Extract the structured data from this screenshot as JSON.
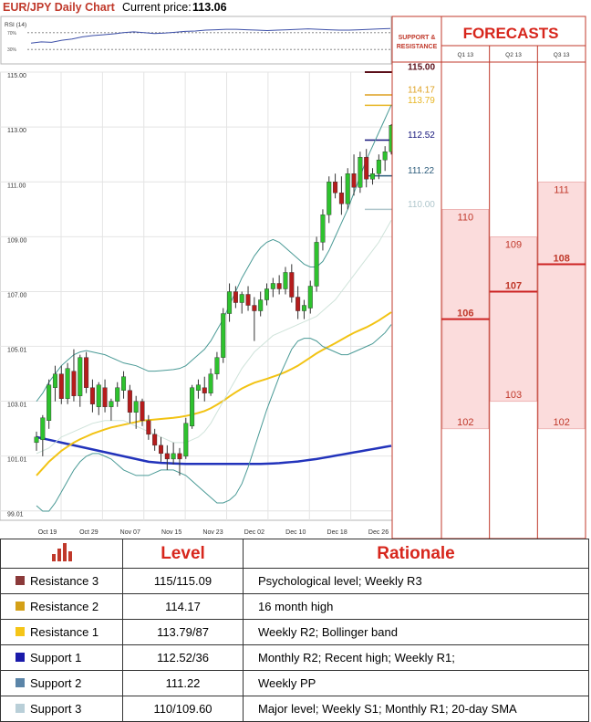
{
  "header": {
    "title": "EUR/JPY Daily Chart",
    "price_label": "Current price:",
    "price_value": "113.06"
  },
  "rsi": {
    "label": "RSI (14)",
    "levels": [
      {
        "label": "70%",
        "value": 70
      },
      {
        "label": "30%",
        "value": 30
      }
    ],
    "values": [
      45,
      48,
      47,
      52,
      55,
      60,
      63,
      65,
      67,
      70,
      72,
      70,
      68,
      69,
      71,
      73,
      74,
      76,
      77,
      78,
      78,
      77,
      76,
      75,
      76,
      77,
      78,
      79,
      78,
      77,
      76,
      76,
      77,
      78,
      79,
      80
    ]
  },
  "chart_data": {
    "type": "candlestick",
    "title": "EUR/JPY Daily Chart",
    "ylim": [
      99.0,
      115.0
    ],
    "y_ticks": [
      "115.00",
      "113.00",
      "111.00",
      "109.00",
      "107.00",
      "105.01",
      "103.01",
      "101.01",
      "99.01"
    ],
    "x_ticks": [
      "Oct 19",
      "Oct 29",
      "Nov 07",
      "Nov 15",
      "Nov 23",
      "Dec 02",
      "Dec 10",
      "Dec 18",
      "Dec 26"
    ],
    "candles": [
      {
        "o": 101.5,
        "h": 101.9,
        "l": 101.2,
        "c": 101.7
      },
      {
        "o": 101.6,
        "h": 102.5,
        "l": 101.0,
        "c": 102.4
      },
      {
        "o": 102.3,
        "h": 103.8,
        "l": 102.0,
        "c": 103.6
      },
      {
        "o": 103.5,
        "h": 104.3,
        "l": 103.0,
        "c": 104.0
      },
      {
        "o": 104.0,
        "h": 104.3,
        "l": 102.9,
        "c": 103.1
      },
      {
        "o": 103.1,
        "h": 104.4,
        "l": 102.9,
        "c": 104.2
      },
      {
        "o": 104.1,
        "h": 104.9,
        "l": 103.0,
        "c": 103.2
      },
      {
        "o": 103.2,
        "h": 104.7,
        "l": 102.8,
        "c": 104.6
      },
      {
        "o": 104.6,
        "h": 104.8,
        "l": 103.3,
        "c": 103.5
      },
      {
        "o": 103.5,
        "h": 103.8,
        "l": 102.6,
        "c": 102.9
      },
      {
        "o": 102.8,
        "h": 103.7,
        "l": 102.5,
        "c": 103.6
      },
      {
        "o": 103.5,
        "h": 103.8,
        "l": 102.6,
        "c": 102.8
      },
      {
        "o": 102.8,
        "h": 103.1,
        "l": 102.3,
        "c": 103.0
      },
      {
        "o": 103.0,
        "h": 103.7,
        "l": 102.8,
        "c": 103.5
      },
      {
        "o": 103.4,
        "h": 104.1,
        "l": 103.1,
        "c": 103.9
      },
      {
        "o": 103.4,
        "h": 103.6,
        "l": 102.2,
        "c": 102.6
      },
      {
        "o": 102.6,
        "h": 103.2,
        "l": 102.0,
        "c": 103.0
      },
      {
        "o": 103.0,
        "h": 103.1,
        "l": 102.1,
        "c": 102.3
      },
      {
        "o": 102.3,
        "h": 102.5,
        "l": 101.6,
        "c": 101.8
      },
      {
        "o": 101.8,
        "h": 102.0,
        "l": 101.2,
        "c": 101.4
      },
      {
        "o": 101.4,
        "h": 101.7,
        "l": 100.8,
        "c": 101.1
      },
      {
        "o": 101.1,
        "h": 101.4,
        "l": 100.5,
        "c": 100.9
      },
      {
        "o": 100.9,
        "h": 101.5,
        "l": 100.7,
        "c": 101.1
      },
      {
        "o": 101.1,
        "h": 101.3,
        "l": 100.3,
        "c": 100.9
      },
      {
        "o": 101.0,
        "h": 102.4,
        "l": 100.9,
        "c": 102.2
      },
      {
        "o": 102.1,
        "h": 103.6,
        "l": 102.0,
        "c": 103.5
      },
      {
        "o": 103.4,
        "h": 103.8,
        "l": 103.1,
        "c": 103.6
      },
      {
        "o": 103.5,
        "h": 103.9,
        "l": 103.0,
        "c": 103.3
      },
      {
        "o": 103.3,
        "h": 104.2,
        "l": 103.2,
        "c": 104.0
      },
      {
        "o": 104.0,
        "h": 104.8,
        "l": 103.8,
        "c": 104.6
      },
      {
        "o": 104.6,
        "h": 106.4,
        "l": 104.4,
        "c": 106.2
      },
      {
        "o": 106.2,
        "h": 107.3,
        "l": 105.9,
        "c": 107.0
      },
      {
        "o": 107.0,
        "h": 107.2,
        "l": 106.4,
        "c": 106.6
      },
      {
        "o": 106.6,
        "h": 107.0,
        "l": 106.2,
        "c": 106.9
      },
      {
        "o": 106.9,
        "h": 107.2,
        "l": 106.3,
        "c": 106.5
      },
      {
        "o": 106.5,
        "h": 106.8,
        "l": 105.2,
        "c": 106.3
      },
      {
        "o": 106.3,
        "h": 107.0,
        "l": 106.1,
        "c": 106.7
      },
      {
        "o": 106.7,
        "h": 107.3,
        "l": 106.5,
        "c": 107.1
      },
      {
        "o": 107.1,
        "h": 107.5,
        "l": 106.8,
        "c": 107.3
      },
      {
        "o": 107.3,
        "h": 107.6,
        "l": 106.9,
        "c": 107.1
      },
      {
        "o": 107.1,
        "h": 107.9,
        "l": 106.9,
        "c": 107.7
      },
      {
        "o": 107.7,
        "h": 108.0,
        "l": 106.6,
        "c": 106.8
      },
      {
        "o": 106.8,
        "h": 107.2,
        "l": 106.0,
        "c": 106.3
      },
      {
        "o": 106.3,
        "h": 106.7,
        "l": 106.0,
        "c": 106.5
      },
      {
        "o": 106.4,
        "h": 107.4,
        "l": 106.2,
        "c": 107.2
      },
      {
        "o": 107.2,
        "h": 109.0,
        "l": 107.0,
        "c": 108.8
      },
      {
        "o": 108.8,
        "h": 110.0,
        "l": 108.5,
        "c": 109.8
      },
      {
        "o": 109.8,
        "h": 111.2,
        "l": 109.5,
        "c": 111.0
      },
      {
        "o": 111.0,
        "h": 111.3,
        "l": 110.4,
        "c": 110.6
      },
      {
        "o": 110.6,
        "h": 111.2,
        "l": 109.8,
        "c": 110.2
      },
      {
        "o": 110.2,
        "h": 111.5,
        "l": 110.0,
        "c": 111.3
      },
      {
        "o": 111.3,
        "h": 112.0,
        "l": 110.5,
        "c": 110.8
      },
      {
        "o": 110.8,
        "h": 112.1,
        "l": 110.6,
        "c": 111.9
      },
      {
        "o": 111.9,
        "h": 112.2,
        "l": 110.8,
        "c": 111.1
      },
      {
        "o": 111.1,
        "h": 111.5,
        "l": 110.9,
        "c": 111.3
      },
      {
        "o": 111.3,
        "h": 112.0,
        "l": 111.1,
        "c": 111.8
      },
      {
        "o": 111.8,
        "h": 112.3,
        "l": 111.4,
        "c": 112.1
      },
      {
        "o": 112.1,
        "h": 113.1,
        "l": 112.0,
        "c": 113.06
      }
    ],
    "series": [
      {
        "name": "",
        "color": "#2233bb",
        "values": [
          101.7,
          101.65,
          101.6,
          101.55,
          101.5,
          101.45,
          101.4,
          101.35,
          101.3,
          101.25,
          101.2,
          101.15,
          101.1,
          101.05,
          101.0,
          100.95,
          100.9,
          100.85,
          100.8,
          100.78,
          100.76,
          100.75,
          100.74,
          100.73,
          100.72,
          100.72,
          100.72,
          100.72,
          100.72,
          100.72,
          100.72,
          100.72,
          100.72,
          100.72,
          100.72,
          100.72,
          100.72,
          100.73,
          100.74,
          100.75,
          100.77,
          100.79,
          100.81,
          100.84,
          100.87,
          100.9,
          100.94,
          100.98,
          101.02,
          101.06,
          101.1,
          101.14,
          101.18,
          101.22,
          101.26,
          101.3,
          101.34,
          101.38
        ]
      },
      {
        "name": "",
        "color": "#f2c314",
        "values": [
          100.3,
          100.55,
          100.8,
          101.0,
          101.2,
          101.35,
          101.5,
          101.62,
          101.72,
          101.82,
          101.9,
          101.98,
          102.05,
          102.1,
          102.15,
          102.2,
          102.25,
          102.3,
          102.32,
          102.34,
          102.36,
          102.38,
          102.4,
          102.43,
          102.47,
          102.52,
          102.58,
          102.65,
          102.75,
          102.88,
          103.02,
          103.18,
          103.33,
          103.47,
          103.58,
          103.68,
          103.75,
          103.82,
          103.9,
          103.98,
          104.07,
          104.18,
          104.3,
          104.45,
          104.6,
          104.75,
          104.88,
          105.0,
          105.12,
          105.25,
          105.38,
          105.5,
          105.6,
          105.7,
          105.82,
          105.95,
          106.1,
          106.25
        ]
      },
      {
        "name": "",
        "color": "#4a9a96",
        "values": [
          103.0,
          103.3,
          103.7,
          104.0,
          104.3,
          104.5,
          104.7,
          104.8,
          104.85,
          104.8,
          104.75,
          104.7,
          104.6,
          104.5,
          104.4,
          104.35,
          104.3,
          104.2,
          104.1,
          104.1,
          104.12,
          104.14,
          104.16,
          104.2,
          104.3,
          104.5,
          104.7,
          104.9,
          105.2,
          105.6,
          106.0,
          106.5,
          107.0,
          107.5,
          107.9,
          108.3,
          108.6,
          108.8,
          108.9,
          108.8,
          108.6,
          108.4,
          108.2,
          108.0,
          107.9,
          107.9,
          108.1,
          108.5,
          109.0,
          109.5,
          110.0,
          110.6,
          111.2,
          111.8,
          112.3,
          112.8,
          113.3,
          113.8
        ]
      },
      {
        "name": "",
        "color": "#4a9a96",
        "values": [
          99.2,
          99.0,
          99.0,
          99.3,
          99.7,
          100.1,
          100.5,
          100.8,
          101.0,
          101.1,
          101.1,
          101.0,
          100.9,
          100.7,
          100.5,
          100.4,
          100.3,
          100.3,
          100.3,
          100.4,
          100.5,
          100.5,
          100.5,
          100.4,
          100.3,
          100.1,
          99.9,
          99.7,
          99.5,
          99.3,
          99.3,
          99.4,
          99.6,
          100.0,
          100.6,
          101.3,
          102.0,
          102.7,
          103.3,
          103.9,
          104.4,
          104.9,
          105.2,
          105.3,
          105.3,
          105.2,
          105.0,
          104.9,
          104.8,
          104.7,
          104.7,
          104.8,
          104.9,
          105.0,
          105.1,
          105.3,
          105.5,
          105.8
        ]
      },
      {
        "name": "",
        "color": "#cfe3da",
        "values": [
          101.1,
          101.2,
          101.3,
          101.5,
          101.7,
          101.8,
          101.9,
          102.0,
          102.1,
          102.2,
          102.25,
          102.3,
          102.3,
          102.3,
          102.3,
          102.2,
          102.1,
          102.0,
          101.9,
          101.8,
          101.7,
          101.6,
          101.5,
          101.5,
          101.5,
          101.6,
          101.7,
          101.9,
          102.2,
          102.6,
          103.0,
          103.4,
          103.8,
          104.2,
          104.5,
          104.8,
          105.0,
          105.2,
          105.4,
          105.5,
          105.6,
          105.7,
          105.8,
          105.9,
          106.0,
          106.1,
          106.3,
          106.5,
          106.7,
          107.0,
          107.3,
          107.6,
          107.9,
          108.2,
          108.5,
          108.8,
          109.2,
          109.6
        ]
      }
    ]
  },
  "support_resistance": {
    "header": "SUPPORT & RESISTANCE",
    "levels": [
      {
        "label": "115.00",
        "value": 115.0,
        "color": "#5a0f19",
        "bold": true
      },
      {
        "label": "114.17",
        "value": 114.17,
        "color": "#dda020",
        "bold": false
      },
      {
        "label": "113.79",
        "value": 113.79,
        "color": "#e7b624",
        "bold": false
      },
      {
        "label": "112.52",
        "value": 112.52,
        "color": "#13137a",
        "bold": false
      },
      {
        "label": "111.22",
        "value": 111.22,
        "color": "#2e5d7c",
        "bold": false
      },
      {
        "label": "110.00",
        "value": 110.0,
        "color": "#afc6cc",
        "bold": false
      }
    ]
  },
  "forecasts": {
    "title": "FORECASTS",
    "columns": [
      {
        "label": "Q1 13",
        "high": 110,
        "mid": 106,
        "low": 102,
        "high_label": "110",
        "mid_label": "106",
        "low_label": "102"
      },
      {
        "label": "Q2 13",
        "high": 109,
        "mid": 107,
        "low": 103,
        "high_label": "109",
        "mid_label": "107",
        "low_label": "103"
      },
      {
        "label": "Q3 13",
        "high": 111,
        "mid": 108,
        "low": 102,
        "high_label": "111",
        "mid_label": "108",
        "low_label": "102"
      }
    ]
  },
  "table": {
    "header_level": "Level",
    "header_rationale": "Rationale",
    "rows": [
      {
        "type": "Resistance 3",
        "level": "115/115.09",
        "rationale": "Psychological level; Weekly R3",
        "color": "#8b3a3a"
      },
      {
        "type": "Resistance 2",
        "level": "114.17",
        "rationale": "16 month high",
        "color": "#d4a017"
      },
      {
        "type": "Resistance 1",
        "level": "113.79/87",
        "rationale": "Weekly R2; Bollinger band",
        "color": "#f5c518"
      },
      {
        "type": "Support 1",
        "level": "112.52/36",
        "rationale": "Monthly R2; Recent high; Weekly R1;",
        "color": "#1a1aaa"
      },
      {
        "type": "Support 2",
        "level": "111.22",
        "rationale": "Weekly PP",
        "color": "#5b85a8"
      },
      {
        "type": "Support 3",
        "level": "110/109.60",
        "rationale": "Major level; Weekly S1; Monthly R1; 20-day SMA",
        "color": "#b9cfd8"
      }
    ]
  }
}
